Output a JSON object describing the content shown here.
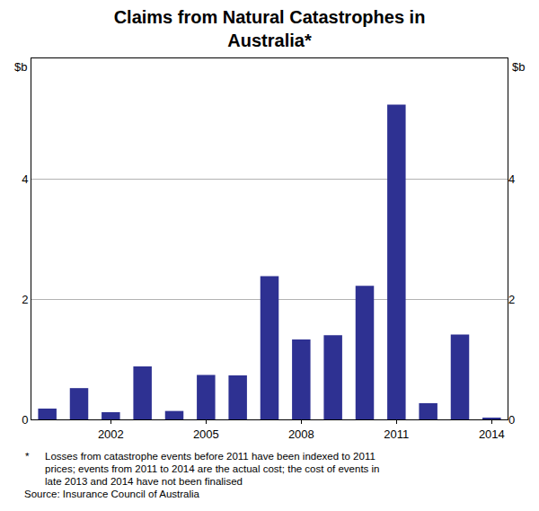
{
  "chart_data": {
    "type": "bar",
    "title": [
      "Claims from Natural Catastrophes in",
      "Australia*"
    ],
    "ylabel": "$b",
    "y2label": "$b",
    "categories": [
      null,
      null,
      "2002",
      null,
      null,
      "2005",
      null,
      null,
      "2008",
      null,
      null,
      "2011",
      null,
      null,
      "2014"
    ],
    "values": [
      0.18,
      0.52,
      0.12,
      0.88,
      0.14,
      0.74,
      0.73,
      2.38,
      1.33,
      1.4,
      2.22,
      5.23,
      0.27,
      1.41,
      0.03
    ],
    "color": "#2e3192",
    "ylim": [
      0,
      6
    ],
    "yticks": [
      0,
      2,
      4
    ],
    "y2lim": [
      0,
      6
    ],
    "y2ticks": [
      0,
      2,
      4
    ],
    "grid": true,
    "notes": {
      "marker": "*",
      "lines": [
        "Losses from catastrophe events before 2011 have been indexed to 2011",
        "prices; events from 2011 to 2014 are the actual cost; the cost of events in",
        "late 2013 and 2014 have not been finalised"
      ]
    },
    "source": "Source: Insurance Council of Australia"
  }
}
